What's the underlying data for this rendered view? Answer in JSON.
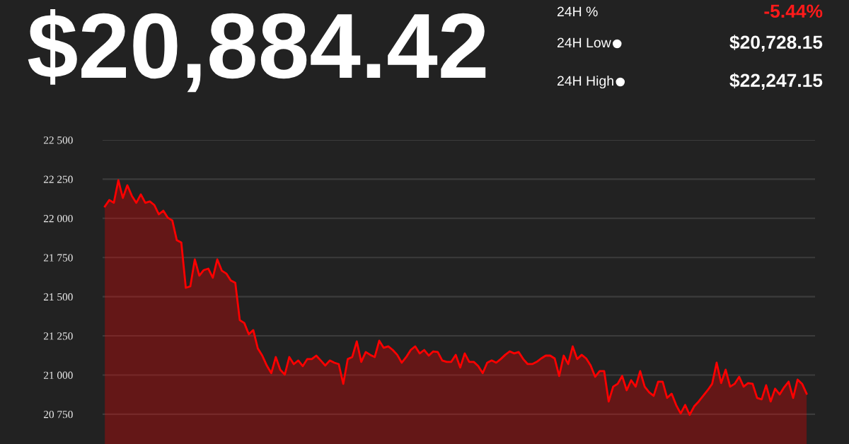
{
  "chart_data": {
    "type": "area",
    "title": "$20,884.42",
    "annotations": [
      "24H %",
      "-5.44%",
      "24H Low",
      "$20,728.15",
      "24H High",
      "$22,247.15"
    ],
    "categories": [
      null,
      null,
      null,
      null,
      null,
      null,
      null,
      null,
      null,
      null,
      null,
      null,
      null,
      null,
      null,
      null,
      null,
      null,
      null,
      null,
      null,
      null,
      null,
      null,
      null,
      null,
      null,
      null,
      null,
      null,
      null,
      null,
      null,
      null,
      null,
      null,
      null,
      null,
      null,
      null,
      null,
      null,
      null,
      null,
      null,
      null,
      null,
      null,
      null,
      null,
      null,
      null,
      null,
      null,
      null,
      null,
      null,
      null,
      null,
      null,
      null,
      null,
      null,
      null,
      null,
      null,
      null,
      null,
      null,
      null,
      null,
      null,
      null,
      null,
      null,
      null,
      null,
      null,
      null,
      null,
      null,
      null,
      null,
      null,
      null,
      null,
      null,
      null,
      null,
      null,
      null,
      null,
      null,
      null,
      null,
      null,
      null,
      null,
      null,
      null,
      null,
      null,
      null,
      null,
      null,
      null,
      null,
      null,
      null,
      null,
      null,
      null,
      null,
      null,
      null,
      null,
      null,
      null,
      null,
      null,
      null,
      null,
      null,
      null,
      null,
      null,
      null,
      null,
      null,
      null,
      null,
      null,
      null,
      null,
      null,
      null,
      null,
      null,
      null,
      null,
      null,
      null,
      null,
      null,
      null,
      null,
      null,
      null,
      null,
      null,
      null,
      null,
      null,
      null,
      null,
      null,
      null
    ],
    "series": [
      {
        "color": "#ff0000",
        "values": [
          22076,
          22117,
          22099,
          22243,
          22130,
          22211,
          22144,
          22099,
          22153,
          22099,
          22108,
          22085,
          22026,
          22049,
          22004,
          21986,
          21860,
          21846,
          21557,
          21566,
          21738,
          21634,
          21670,
          21679,
          21621,
          21738,
          21666,
          21648,
          21603,
          21589,
          21350,
          21332,
          21260,
          21287,
          21170,
          21124,
          21061,
          21012,
          21115,
          21034,
          21003,
          21115,
          21070,
          21093,
          21057,
          21102,
          21102,
          21124,
          21093,
          21061,
          21093,
          21079,
          21070,
          20944,
          21102,
          21115,
          21215,
          21084,
          21147,
          21129,
          21115,
          21219,
          21174,
          21183,
          21160,
          21129,
          21079,
          21115,
          21160,
          21183,
          21138,
          21160,
          21124,
          21151,
          21147,
          21093,
          21084,
          21084,
          21129,
          21048,
          21138,
          21084,
          21084,
          21057,
          21012,
          21079,
          21093,
          21079,
          21102,
          21129,
          21151,
          21138,
          21147,
          21102,
          21070,
          21070,
          21084,
          21106,
          21124,
          21124,
          21106,
          20994,
          21124,
          21070,
          21183,
          21102,
          21129,
          21106,
          21061,
          20989,
          21025,
          21025,
          20831,
          20926,
          20944,
          20994,
          20903,
          20967,
          20926,
          21025,
          20926,
          20890,
          20867,
          20958,
          20958,
          20854,
          20881,
          20809,
          20755,
          20809,
          20746,
          20800,
          20831,
          20867,
          20903,
          20944,
          21079,
          20949,
          21034,
          20926,
          20944,
          20989,
          20926,
          20949,
          20944,
          20854,
          20845,
          20935,
          20831,
          20913,
          20876,
          20922,
          20958,
          20854,
          20971,
          20944,
          20881
        ]
      }
    ],
    "ylim": [
      20560,
      22500
    ],
    "yticks": [
      {
        "value": 20750,
        "label": "20 750"
      },
      {
        "value": 21000,
        "label": "21 000"
      },
      {
        "value": 21250,
        "label": "21 250"
      },
      {
        "value": 21500,
        "label": "21 500"
      },
      {
        "value": 21750,
        "label": "21 750"
      },
      {
        "value": 22000,
        "label": "22 000"
      },
      {
        "value": 22250,
        "label": "22 250"
      },
      {
        "value": 22500,
        "label": "22 500"
      }
    ],
    "grid": "y",
    "marker": "none",
    "line_style": "solid",
    "tick_labels": "y"
  }
}
